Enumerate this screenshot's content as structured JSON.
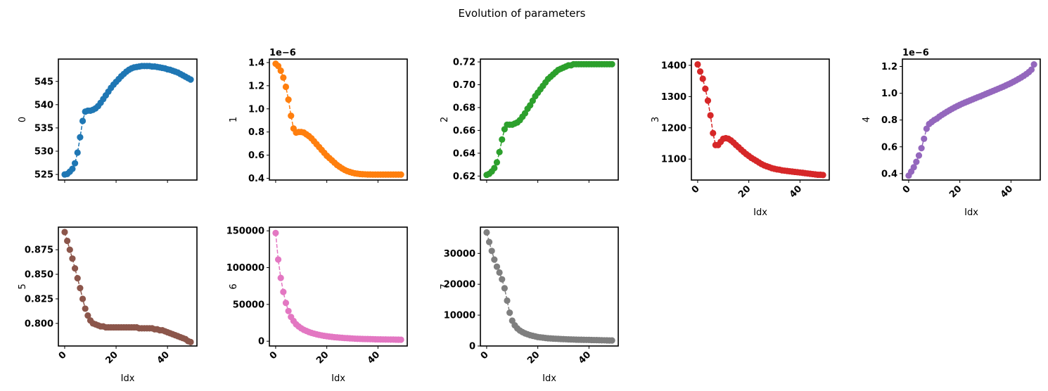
{
  "figure": {
    "title": "Evolution of parameters"
  },
  "chart_data": [
    {
      "type": "line",
      "name": "0",
      "ylabel": "0",
      "xlabel": "",
      "color": "#1f77b4",
      "x_range": [
        -2.45,
        51.45
      ],
      "ylim": [
        523.8,
        549.8
      ],
      "yticks": [
        525,
        530,
        535,
        540,
        545
      ],
      "yticklabels": [
        "525",
        "530",
        "535",
        "540",
        "545"
      ],
      "xticks": [
        0,
        20,
        40
      ],
      "xticklabels": [],
      "y_offset": "",
      "values": [
        525,
        525.1,
        525.6,
        526.2,
        527.4,
        529.7,
        533,
        536.5,
        538.5,
        538.7,
        538.7,
        538.9,
        539.2,
        539.7,
        540.4,
        541.2,
        542,
        542.8,
        543.6,
        544.3,
        544.9,
        545.5,
        546.1,
        546.6,
        547.1,
        547.5,
        547.8,
        548,
        548.1,
        548.2,
        548.3,
        548.3,
        548.3,
        548.3,
        548.2,
        548.2,
        548.1,
        548,
        547.9,
        547.8,
        547.6,
        547.5,
        547.3,
        547.1,
        546.9,
        546.6,
        546.3,
        546,
        545.7,
        545.4
      ]
    },
    {
      "type": "line",
      "name": "1",
      "ylabel": "1",
      "xlabel": "",
      "color": "#ff7f0e",
      "x_range": [
        -2.45,
        51.45
      ],
      "ylim": [
        0.385,
        1.43
      ],
      "yticks": [
        0.4,
        0.6,
        0.8,
        1.0,
        1.2,
        1.4
      ],
      "yticklabels": [
        "0.4",
        "0.6",
        "0.8",
        "1.0",
        "1.2",
        "1.4"
      ],
      "xticks": [
        0,
        20,
        40
      ],
      "xticklabels": [],
      "y_offset": "1e−6",
      "values": [
        1.39,
        1.37,
        1.33,
        1.27,
        1.19,
        1.08,
        0.94,
        0.83,
        0.795,
        0.8,
        0.8,
        0.795,
        0.78,
        0.765,
        0.745,
        0.72,
        0.695,
        0.67,
        0.645,
        0.62,
        0.595,
        0.575,
        0.555,
        0.535,
        0.515,
        0.5,
        0.485,
        0.472,
        0.462,
        0.455,
        0.448,
        0.443,
        0.44,
        0.437,
        0.435,
        0.434,
        0.433,
        0.433,
        0.432,
        0.432,
        0.432,
        0.432,
        0.432,
        0.432,
        0.432,
        0.432,
        0.432,
        0.432,
        0.432,
        0.432
      ]
    },
    {
      "type": "line",
      "name": "2",
      "ylabel": "2",
      "xlabel": "",
      "color": "#2ca02c",
      "x_range": [
        -2.45,
        51.45
      ],
      "ylim": [
        0.6165,
        0.7225
      ],
      "yticks": [
        0.62,
        0.64,
        0.66,
        0.68,
        0.7,
        0.72
      ],
      "yticklabels": [
        "0.62",
        "0.64",
        "0.66",
        "0.68",
        "0.70",
        "0.72"
      ],
      "xticks": [
        0,
        20,
        40
      ],
      "xticklabels": [],
      "y_offset": "",
      "values": [
        0.621,
        0.622,
        0.624,
        0.627,
        0.632,
        0.641,
        0.652,
        0.661,
        0.665,
        0.665,
        0.665,
        0.666,
        0.667,
        0.669,
        0.672,
        0.675,
        0.679,
        0.682,
        0.686,
        0.69,
        0.693,
        0.696,
        0.699,
        0.702,
        0.705,
        0.707,
        0.709,
        0.711,
        0.713,
        0.714,
        0.715,
        0.716,
        0.717,
        0.717,
        0.718,
        0.718,
        0.718,
        0.718,
        0.718,
        0.718,
        0.718,
        0.718,
        0.718,
        0.718,
        0.718,
        0.718,
        0.718,
        0.718,
        0.718,
        0.718
      ]
    },
    {
      "type": "line",
      "name": "3",
      "ylabel": "3",
      "xlabel": "Idx",
      "color": "#d62728",
      "x_range": [
        -2.45,
        51.45
      ],
      "ylim": [
        1033,
        1420
      ],
      "yticks": [
        1100,
        1200,
        1300,
        1400
      ],
      "yticklabels": [
        "1100",
        "1200",
        "1300",
        "1400"
      ],
      "xticks": [
        0,
        20,
        40
      ],
      "xticklabels": [
        "0",
        "20",
        "40"
      ],
      "y_offset": "",
      "values": [
        1403,
        1380,
        1357,
        1325,
        1287,
        1240,
        1183,
        1145,
        1145,
        1155,
        1165,
        1167,
        1165,
        1160,
        1153,
        1145,
        1138,
        1130,
        1123,
        1116,
        1110,
        1104,
        1099,
        1094,
        1089,
        1084,
        1080,
        1077,
        1074,
        1071,
        1069,
        1067,
        1066,
        1064,
        1063,
        1062,
        1061,
        1060,
        1059,
        1058,
        1057,
        1056,
        1055,
        1054,
        1053,
        1052,
        1051,
        1050,
        1050,
        1049
      ]
    },
    {
      "type": "line",
      "name": "4",
      "ylabel": "4",
      "xlabel": "Idx",
      "color": "#9467bd",
      "x_range": [
        -2.45,
        51.45
      ],
      "ylim": [
        0.352,
        1.255
      ],
      "yticks": [
        0.4,
        0.6,
        0.8,
        1.0,
        1.2
      ],
      "yticklabels": [
        "0.4",
        "0.6",
        "0.8",
        "1.0",
        "1.2"
      ],
      "xticks": [
        0,
        20,
        40
      ],
      "xticklabels": [
        "0",
        "20",
        "40"
      ],
      "y_offset": "1e−6",
      "values": [
        0.385,
        0.415,
        0.447,
        0.488,
        0.535,
        0.59,
        0.66,
        0.735,
        0.77,
        0.785,
        0.8,
        0.81,
        0.825,
        0.838,
        0.85,
        0.862,
        0.873,
        0.884,
        0.894,
        0.904,
        0.913,
        0.922,
        0.93,
        0.938,
        0.946,
        0.954,
        0.962,
        0.97,
        0.977,
        0.985,
        0.993,
        1.001,
        1.009,
        1.017,
        1.025,
        1.033,
        1.041,
        1.049,
        1.058,
        1.067,
        1.076,
        1.086,
        1.096,
        1.107,
        1.118,
        1.13,
        1.143,
        1.158,
        1.176,
        1.215
      ]
    },
    {
      "type": "line",
      "name": "5",
      "ylabel": "5",
      "xlabel": "Idx",
      "color": "#8c564b",
      "x_range": [
        -2.45,
        51.45
      ],
      "ylim": [
        0.777,
        0.898
      ],
      "yticks": [
        0.8,
        0.825,
        0.85,
        0.875
      ],
      "yticklabels": [
        "0.800",
        "0.825",
        "0.850",
        "0.875"
      ],
      "xticks": [
        0,
        20,
        40
      ],
      "xticklabels": [
        "0",
        "20",
        "40"
      ],
      "y_offset": "",
      "values": [
        0.893,
        0.884,
        0.875,
        0.866,
        0.856,
        0.846,
        0.836,
        0.825,
        0.815,
        0.808,
        0.803,
        0.8,
        0.799,
        0.798,
        0.797,
        0.797,
        0.796,
        0.796,
        0.796,
        0.796,
        0.796,
        0.796,
        0.796,
        0.796,
        0.796,
        0.796,
        0.796,
        0.796,
        0.796,
        0.795,
        0.795,
        0.795,
        0.795,
        0.795,
        0.795,
        0.794,
        0.794,
        0.793,
        0.793,
        0.792,
        0.791,
        0.79,
        0.789,
        0.788,
        0.787,
        0.786,
        0.785,
        0.784,
        0.782,
        0.781
      ]
    },
    {
      "type": "line",
      "name": "6",
      "ylabel": "6",
      "xlabel": "Idx",
      "color": "#e377c2",
      "x_range": [
        -2.45,
        51.45
      ],
      "ylim": [
        -6500,
        155000
      ],
      "yticks": [
        0,
        50000,
        100000,
        150000
      ],
      "yticklabels": [
        "0",
        "50000",
        "100000",
        "150000"
      ],
      "xticks": [
        0,
        20,
        40
      ],
      "xticklabels": [
        "0",
        "20",
        "40"
      ],
      "y_offset": "",
      "values": [
        147000,
        111000,
        86000,
        67000,
        52000,
        41000,
        33000,
        27500,
        23000,
        20000,
        17500,
        15500,
        14000,
        12500,
        11300,
        10300,
        9400,
        8600,
        7900,
        7300,
        6800,
        6300,
        5900,
        5500,
        5200,
        4900,
        4600,
        4300,
        4100,
        3900,
        3700,
        3500,
        3300,
        3200,
        3100,
        3000,
        2900,
        2800,
        2700,
        2600,
        2500,
        2450,
        2400,
        2350,
        2300,
        2250,
        2200,
        2150,
        2100,
        2050
      ]
    },
    {
      "type": "line",
      "name": "7",
      "ylabel": "7",
      "xlabel": "Idx",
      "color": "#7f7f7f",
      "x_range": [
        -2.45,
        51.45
      ],
      "ylim": [
        0,
        38500
      ],
      "yticks": [
        0,
        10000,
        20000,
        30000
      ],
      "yticklabels": [
        "0",
        "10000",
        "20000",
        "30000"
      ],
      "xticks": [
        0,
        20,
        40
      ],
      "xticklabels": [
        "0",
        "20",
        "40"
      ],
      "y_offset": "",
      "values": [
        36800,
        33700,
        30800,
        28000,
        25700,
        23800,
        21600,
        18700,
        14700,
        10800,
        8200,
        6700,
        5700,
        5000,
        4500,
        4100,
        3800,
        3500,
        3300,
        3100,
        2900,
        2800,
        2700,
        2600,
        2500,
        2450,
        2400,
        2350,
        2300,
        2260,
        2220,
        2180,
        2150,
        2120,
        2090,
        2060,
        2040,
        2020,
        2000,
        1980,
        1960,
        1940,
        1920,
        1900,
        1880,
        1860,
        1840,
        1820,
        1800,
        1790
      ]
    }
  ]
}
